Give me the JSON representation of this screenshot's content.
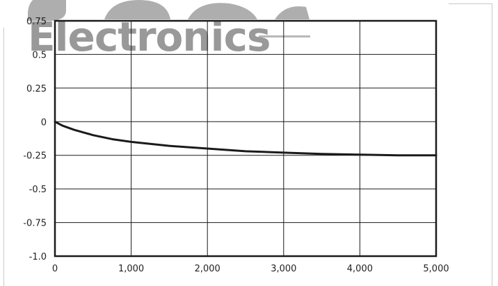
{
  "watermark": {
    "line1": "Jameco",
    "line2": "Electronics"
  },
  "chart_data": {
    "type": "line",
    "title": "",
    "xlabel": "",
    "ylabel": "",
    "xlim": [
      0,
      5000
    ],
    "ylim": [
      -1.0,
      0.75
    ],
    "grid": true,
    "x_ticks": [
      0,
      1000,
      2000,
      3000,
      4000,
      5000
    ],
    "x_tick_labels": [
      "0",
      "1,000",
      "2,000",
      "3,000",
      "4,000",
      "5,000"
    ],
    "y_ticks": [
      0.75,
      0.5,
      0.25,
      0,
      -0.25,
      -0.5,
      -0.75,
      -1.0
    ],
    "y_tick_labels": [
      "0.75",
      "0.5",
      "0.25",
      "0",
      "-0.25",
      "-0.5",
      "-0.75",
      "-1.0"
    ],
    "series": [
      {
        "color": "#1a1a1a",
        "x": [
          0,
          100,
          250,
          500,
          750,
          1000,
          1500,
          2000,
          2500,
          3000,
          3500,
          4000,
          4500,
          5000
        ],
        "y": [
          0,
          -0.03,
          -0.06,
          -0.1,
          -0.13,
          -0.15,
          -0.18,
          -0.2,
          -0.22,
          -0.23,
          -0.24,
          -0.245,
          -0.25,
          -0.25
        ]
      }
    ]
  }
}
